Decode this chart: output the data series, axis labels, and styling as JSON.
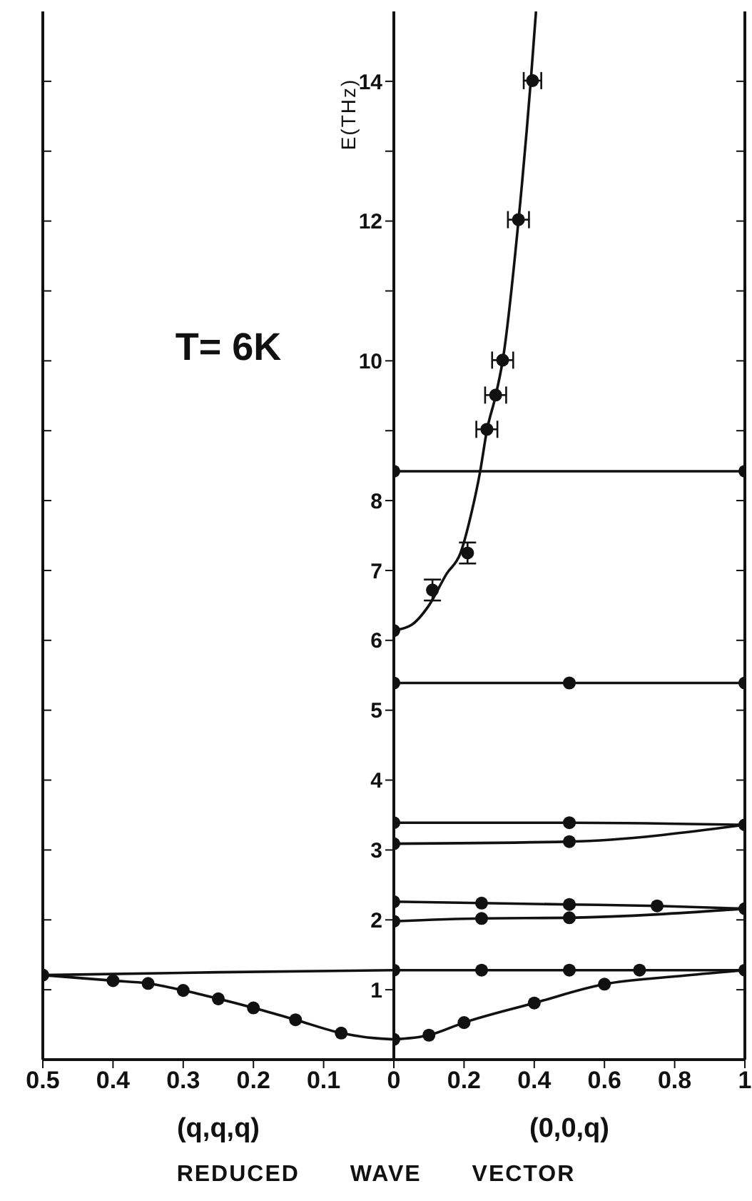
{
  "chart_data": [
    {
      "type": "line",
      "xlabel": "(q,q,q)",
      "annotations": [
        "T= 6K"
      ],
      "line_style": "solid",
      "tick_labels": "x",
      "xlim": [
        0.5,
        0
      ],
      "xticks": [
        0.5,
        0.4,
        0.3,
        0.2,
        0.1
      ],
      "ylim": [
        0,
        15
      ],
      "yticks": [
        0,
        1,
        2,
        3,
        4,
        5,
        6,
        7,
        8,
        9,
        10,
        11,
        12,
        13,
        14
      ],
      "series": [
        {
          "color": "#111111",
          "x": [
            0.5,
            0.25,
            0
          ],
          "values": [
            1.21,
            1.25,
            1.28
          ]
        },
        {
          "color": "#111111",
          "x": [
            0.5,
            0.4,
            0.35,
            0.3,
            0.25,
            0.2,
            0.14,
            0.075,
            0.03,
            0
          ],
          "values": [
            1.21,
            1.13,
            1.09,
            0.99,
            0.87,
            0.74,
            0.57,
            0.38,
            0.31,
            0.29
          ]
        },
        {
          "type": "scatter",
          "marker": "circle",
          "color": "#111111",
          "x": [
            0.5,
            0.4,
            0.35,
            0.3,
            0.25,
            0.2,
            0.14,
            0.075
          ],
          "values": [
            1.21,
            1.13,
            1.09,
            0.99,
            0.87,
            0.74,
            0.57,
            0.38
          ]
        }
      ]
    },
    {
      "type": "line",
      "xlabel": "(0,0,q)",
      "ylabel": "E(THz)",
      "annotations": [
        "REDUCED WAVE VECTOR"
      ],
      "line_style": "solid",
      "xlim": [
        0,
        1
      ],
      "xticks": [
        0,
        0.2,
        0.4,
        0.6,
        0.8,
        1
      ],
      "ylim": [
        0,
        15
      ],
      "yticks": [
        {
          "value": 0,
          "label": null
        },
        1,
        2,
        3,
        4,
        5,
        6,
        7,
        8,
        {
          "value": 9,
          "label": null
        },
        10,
        {
          "value": 11,
          "label": null
        },
        12,
        {
          "value": 13,
          "label": null
        },
        14
      ],
      "series": [
        {
          "color": "#111111",
          "x": [
            0,
            0.1,
            0.2,
            0.4,
            0.6,
            0.8,
            1
          ],
          "values": [
            0.29,
            0.35,
            0.53,
            0.81,
            1.08,
            1.19,
            1.28
          ]
        },
        {
          "color": "#111111",
          "x": [
            0,
            1
          ],
          "values": [
            1.28,
            1.28
          ]
        },
        {
          "color": "#111111",
          "x": [
            0,
            0.25,
            0.5,
            1
          ],
          "values": [
            1.98,
            2.02,
            2.03,
            2.16
          ]
        },
        {
          "color": "#111111",
          "x": [
            0,
            0.25,
            0.5,
            0.75,
            1
          ],
          "values": [
            2.26,
            2.24,
            2.22,
            2.2,
            2.16
          ]
        },
        {
          "color": "#111111",
          "x": [
            0,
            0.5,
            1
          ],
          "values": [
            3.09,
            3.12,
            3.36
          ]
        },
        {
          "color": "#111111",
          "x": [
            0,
            0.5,
            1
          ],
          "values": [
            3.39,
            3.39,
            3.36
          ]
        },
        {
          "color": "#111111",
          "x": [
            0,
            0.5,
            1
          ],
          "values": [
            5.39,
            5.39,
            5.39
          ]
        },
        {
          "color": "#111111",
          "x": [
            0,
            1
          ],
          "values": [
            8.42,
            8.42
          ]
        },
        {
          "color": "#111111",
          "x": [
            0,
            0.05,
            0.1,
            0.15,
            0.19,
            0.22,
            0.246,
            0.265,
            0.29,
            0.31,
            0.355,
            0.39,
            0.405
          ],
          "values": [
            6.14,
            6.22,
            6.5,
            6.95,
            7.25,
            7.8,
            8.42,
            9.0,
            9.5,
            10.0,
            12.0,
            14.0,
            15.0
          ]
        },
        {
          "type": "scatter",
          "marker": "circle",
          "color": "#111111",
          "x": [
            0,
            0.1,
            0.2,
            0.4,
            0.6,
            0,
            0.25,
            0.5,
            0.7,
            1,
            0,
            0.25,
            0.5,
            1,
            0,
            0.25,
            0.5,
            0.75,
            0,
            0.5,
            1,
            0,
            0.5,
            0,
            0.5,
            1,
            0,
            1,
            0,
            0.11,
            0.21,
            0.265,
            0.29,
            0.31,
            0.355,
            0.395
          ],
          "values": [
            0.29,
            0.35,
            0.53,
            0.81,
            1.08,
            1.28,
            1.28,
            1.28,
            1.28,
            1.28,
            1.98,
            2.02,
            2.03,
            2.16,
            2.26,
            2.24,
            2.22,
            2.2,
            3.09,
            3.12,
            3.36,
            3.39,
            3.39,
            5.39,
            5.39,
            5.39,
            8.42,
            8.42,
            6.14,
            6.72,
            7.25,
            9.02,
            9.51,
            10.01,
            12.02,
            14.01
          ],
          "errors": [
            null,
            null,
            null,
            null,
            null,
            null,
            null,
            null,
            null,
            null,
            null,
            null,
            null,
            null,
            null,
            null,
            null,
            null,
            null,
            null,
            null,
            null,
            null,
            null,
            null,
            null,
            null,
            null,
            null,
            0.15,
            0.15,
            null,
            null,
            null,
            null,
            null
          ],
          "xerrors": [
            null,
            null,
            null,
            null,
            null,
            null,
            null,
            null,
            null,
            null,
            null,
            null,
            null,
            null,
            null,
            null,
            null,
            null,
            null,
            null,
            null,
            null,
            null,
            null,
            null,
            null,
            null,
            null,
            null,
            null,
            null,
            0.03,
            0.03,
            0.03,
            0.03,
            0.025
          ]
        }
      ]
    }
  ]
}
